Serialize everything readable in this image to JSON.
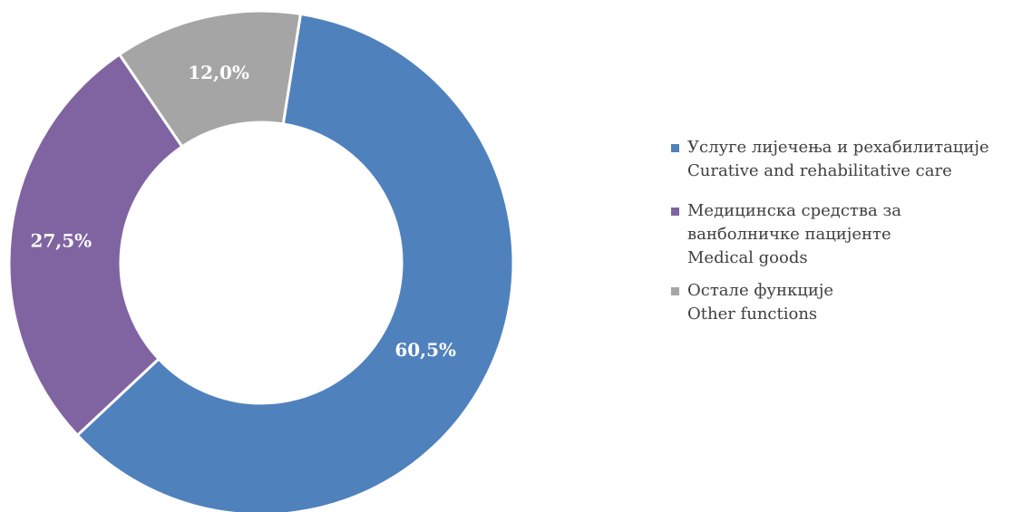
{
  "chart_data": {
    "type": "pie",
    "donut": true,
    "categories": [
      "Услуге лијечења и рехабилитације Curative and rehabilitative care",
      "Медицинска средства за ванболничке пацијенте Medical goods",
      "Остале функције Other functions"
    ],
    "values": [
      60.5,
      27.5,
      12.0
    ],
    "data_labels": [
      "60,5%",
      "27,5%",
      "12,0%"
    ],
    "colors": [
      "#4f81bd",
      "#8064a2",
      "#a5a5a5"
    ],
    "legend_position": "right",
    "legend": [
      {
        "lines": [
          "Услуге лијечења и рехабилитације",
          "Curative and rehabilitative care"
        ],
        "color": "#4f81bd"
      },
      {
        "lines": [
          "Медицинска средства за",
          "ванболничке пацијенте",
          "Medical goods"
        ],
        "color": "#8064a2"
      },
      {
        "lines": [
          "Остале функције",
          "Other functions"
        ],
        "color": "#a5a5a5"
      }
    ]
  }
}
